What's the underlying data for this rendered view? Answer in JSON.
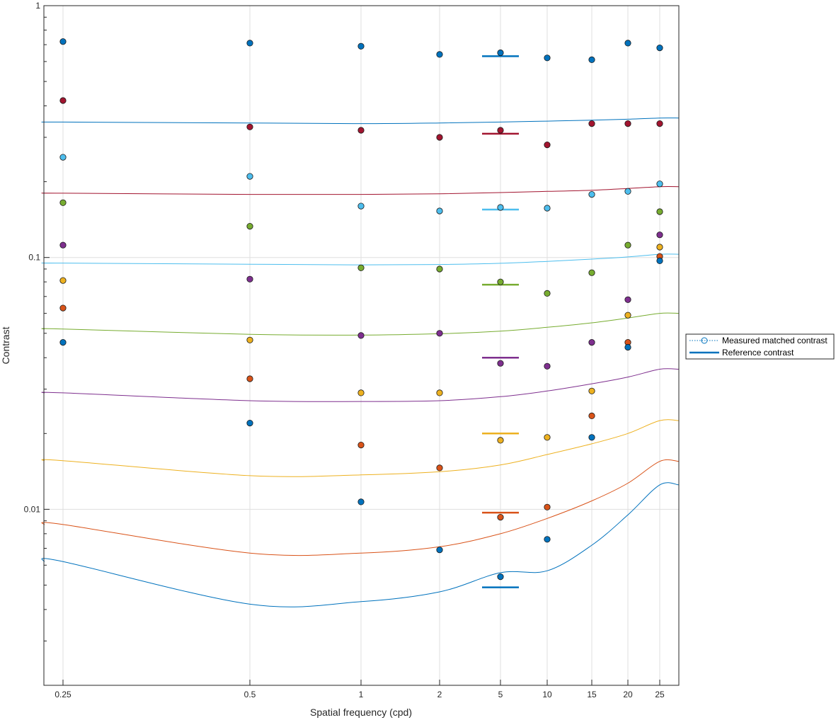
{
  "chart_data": {
    "type": "scatter",
    "xlabel": "Spatial frequency (cpd)",
    "ylabel": "Contrast",
    "x_ticks": [
      0.25,
      0.5,
      1,
      2,
      5,
      10,
      15,
      20,
      25
    ],
    "x_tick_labels": [
      "0.25",
      "0.5",
      "1",
      "2",
      "5",
      "10",
      "15",
      "20",
      "25"
    ],
    "y_scale": "log",
    "ylim": [
      0.002,
      1
    ],
    "y_ticks": [
      0.01,
      0.1,
      1
    ],
    "y_tick_labels": [
      "0.01",
      "0.1",
      "1"
    ],
    "grid": true,
    "legend": {
      "placement": "right",
      "entries": [
        "Measured matched contrast",
        "Reference contrast"
      ]
    },
    "series": [
      {
        "color": "#0072BD",
        "reference": 0.63,
        "measured": [
          0.72,
          0.71,
          0.69,
          0.64,
          0.65,
          0.62,
          0.61,
          0.71,
          0.68
        ],
        "curve": [
          0.345,
          0.342,
          0.34,
          0.342,
          0.345,
          0.348,
          0.351,
          0.354,
          0.358
        ]
      },
      {
        "color": "#A2142F",
        "reference": 0.31,
        "measured": [
          0.42,
          0.33,
          0.32,
          0.3,
          0.32,
          0.28,
          0.34,
          0.34,
          0.34
        ],
        "curve": [
          0.18,
          0.178,
          0.178,
          0.179,
          0.181,
          0.183,
          0.185,
          0.188,
          0.191
        ]
      },
      {
        "color": "#4DBEEE",
        "reference": 0.155,
        "measured": [
          0.25,
          0.21,
          0.16,
          0.153,
          0.158,
          0.157,
          0.178,
          0.183,
          0.196
        ],
        "curve": [
          0.095,
          0.094,
          0.0935,
          0.0938,
          0.0948,
          0.0965,
          0.0985,
          0.1005,
          0.103
        ]
      },
      {
        "color": "#77AC30",
        "reference": 0.078,
        "measured": [
          0.165,
          0.133,
          0.091,
          0.09,
          0.08,
          0.072,
          0.087,
          0.112,
          0.152
        ],
        "curve": [
          0.052,
          0.0495,
          0.0492,
          0.0498,
          0.051,
          0.0528,
          0.055,
          0.0575,
          0.06
        ]
      },
      {
        "color": "#7E2F8E",
        "reference": 0.04,
        "measured": [
          0.112,
          0.082,
          0.049,
          0.05,
          0.038,
          0.037,
          0.046,
          0.068,
          0.123
        ]
      },
      {
        "color": "#EDB120",
        "reference": 0.02,
        "measured": [
          0.081,
          0.047,
          0.029,
          0.029,
          0.0188,
          0.0193,
          0.0295,
          0.059,
          0.11
        ]
      },
      {
        "color": "#D95319",
        "reference": 0.0097,
        "measured": [
          0.063,
          0.033,
          0.018,
          0.0146,
          0.0093,
          0.0102,
          0.0235,
          0.046,
          0.101
        ]
      },
      {
        "color": "#0072BD",
        "reference": 0.0049,
        "measured": [
          0.046,
          0.022,
          0.0107,
          0.0069,
          0.0054,
          0.0076,
          0.0193,
          0.044,
          0.097
        ]
      }
    ]
  }
}
